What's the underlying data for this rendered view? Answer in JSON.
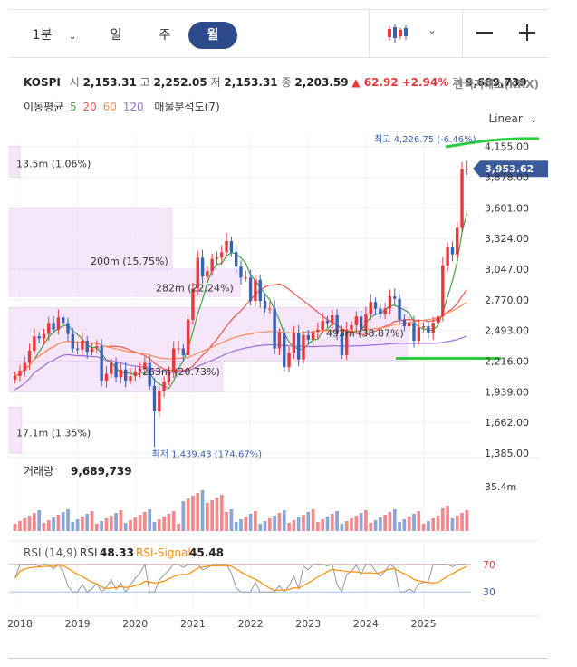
{
  "toolbar": {
    "period_tabs": [
      "1분",
      "일",
      "주",
      "월"
    ],
    "active_tab": "월",
    "minute_dropdown_icon": "chevron-down-icon",
    "chart_type_icon": "candlestick-icon",
    "zoom_out_icon": "minus-icon",
    "zoom_in_icon": "plus-icon"
  },
  "quote": {
    "symbol": "KOSPI",
    "open_label": "시",
    "open": "2,153.31",
    "high_label": "고",
    "high": "2,252.05",
    "low_label": "저",
    "low": "2,153.31",
    "close_label": "종",
    "close": "2,203.59",
    "change": "▲ 62.92",
    "change_pct": "+2.94%",
    "volume_label": "거",
    "volume": "9,689,739",
    "exchange": "한국거래소(KRX)"
  },
  "indicators": {
    "label": "이동평균",
    "ma": [
      {
        "period": "5",
        "color": "#43a047"
      },
      {
        "period": "20",
        "color": "#ef5350"
      },
      {
        "period": "60",
        "color": "#ff8a50"
      },
      {
        "period": "120",
        "color": "#9c6ddb"
      }
    ],
    "volume_profile": "매물분석도(7)"
  },
  "scale_mode": "Linear",
  "chart_data": [
    {
      "type": "candlestick",
      "interval": "monthly",
      "x_ticks": [
        "2018",
        "2019",
        "2020",
        "2021",
        "2022",
        "2023",
        "2024",
        "2025"
      ],
      "y_ticks": [
        "4,155.00",
        "3,878.00",
        "3,601.00",
        "3,324.00",
        "3,047.00",
        "2,770.00",
        "2,493.00",
        "2,216.00",
        "1,939.00",
        "1,662.00",
        "1,385.00"
      ],
      "ylim": [
        1385,
        4250
      ],
      "last_price_label": "3,953.62",
      "high_annotation": "최고 4,226.75 (-6.46%)",
      "low_annotation": "최저 1,439.43 (174.67%)",
      "close_series_approx": [
        2080,
        2130,
        2200,
        2310,
        2440,
        2420,
        2460,
        2560,
        2500,
        2610,
        2560,
        2460,
        2330,
        2320,
        2400,
        2300,
        2330,
        2350,
        2040,
        2100,
        2200,
        2070,
        2140,
        2040,
        2080,
        2120,
        2150,
        2200,
        1990,
        1760,
        1950,
        2030,
        2110,
        2330,
        2330,
        2270,
        2590,
        2870,
        3150,
        2980,
        3030,
        3140,
        3150,
        3200,
        3300,
        3200,
        3070,
        2970,
        2970,
        2760,
        2950,
        2760,
        2690,
        2690,
        2330,
        2470,
        2160,
        2290,
        2470,
        2230,
        2450,
        2410,
        2480,
        2500,
        2580,
        2560,
        2630,
        2470,
        2270,
        2500,
        2540,
        2620,
        2500,
        2640,
        2750,
        2690,
        2640,
        2690,
        2800,
        2780,
        2590,
        2530,
        2560,
        2400,
        2520,
        2530,
        2470,
        2560,
        2620,
        3080,
        3250,
        3180,
        3420,
        3950,
        3953.62
      ],
      "volume_profile_bands": [
        {
          "label": "13.5m (1.06%)"
        },
        {
          "label": "200m (15.75%)"
        },
        {
          "label": "282m (22.24%)"
        },
        {
          "label": "493m (38.87%)"
        },
        {
          "label": "263m (20.73%)"
        },
        {
          "label": "17.1m (1.35%)"
        }
      ],
      "volume_panel": {
        "title": "거래량",
        "value": "9,689,739",
        "max_tick": "35.4m"
      },
      "rsi_panel": {
        "label": "RSI (14,9)",
        "rsi_name": "RSI",
        "rsi_value": "48.33",
        "signal_name": "RSI-Signal",
        "signal_value": "45.48",
        "levels": [
          "70",
          "30"
        ]
      }
    }
  ]
}
